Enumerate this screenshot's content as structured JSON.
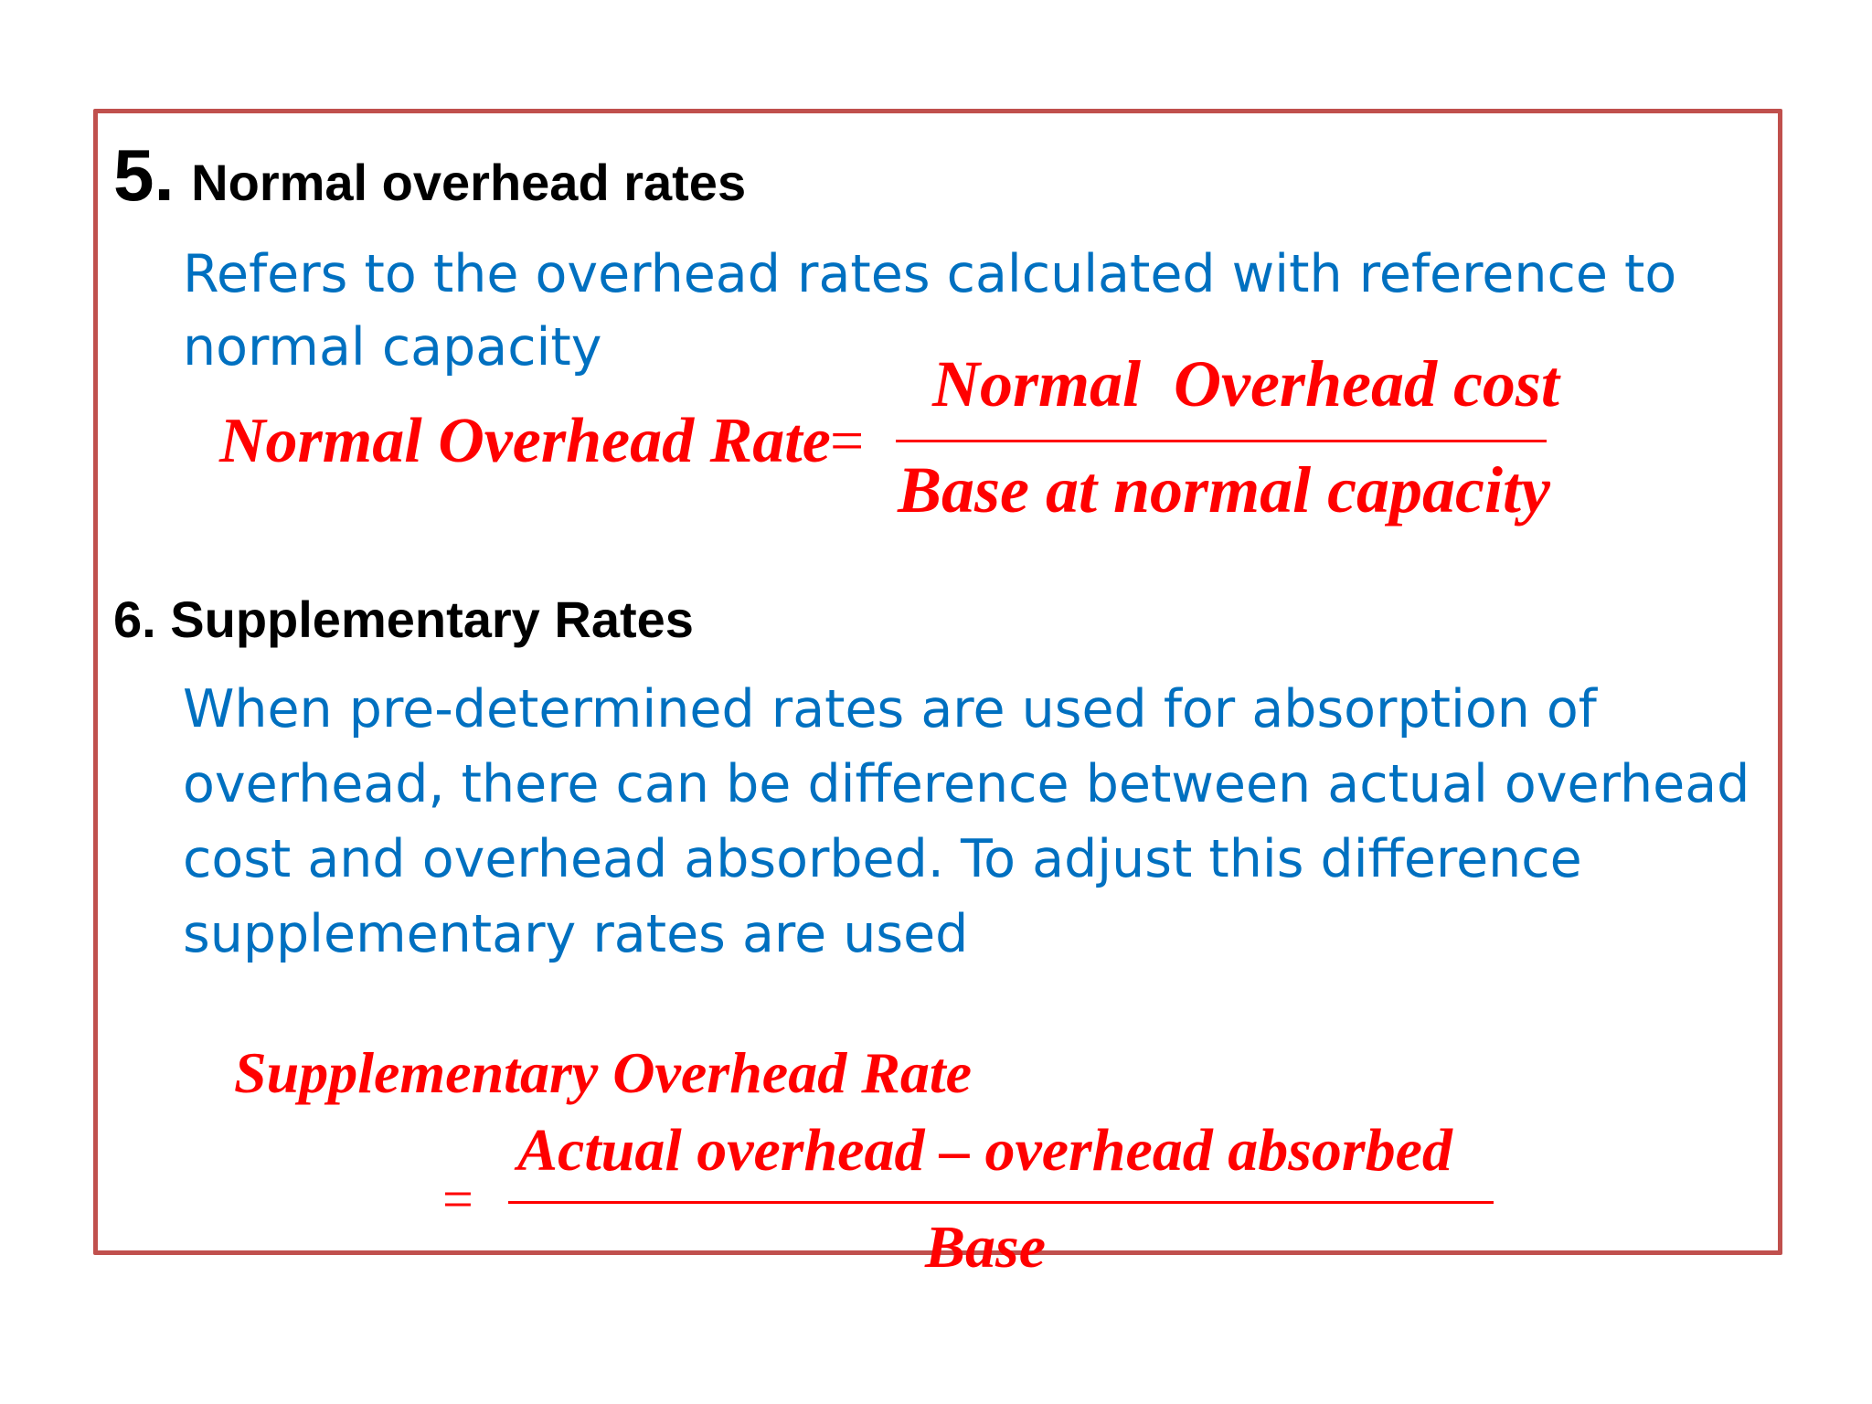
{
  "section5": {
    "number": "5.",
    "title": "Normal overhead rates",
    "description_line1": "Refers to the overhead rates calculated with reference to",
    "description_line2": "normal capacity",
    "formula": {
      "lhs": "Normal Overhead Rate",
      "equals": "=",
      "numerator": "Normal  Overhead cost",
      "denominator": "Base at normal capacity"
    }
  },
  "section6": {
    "title": "6. Supplementary Rates",
    "description_line1": "When pre-determined rates are used for absorption of",
    "description_line2": "overhead, there can be difference between actual overhead",
    "description_line3": "cost and overhead absorbed. To adjust this difference",
    "description_line4": "supplementary rates are used",
    "formula": {
      "lhs": "Supplementary Overhead Rate",
      "equals": "=",
      "numerator": "Actual overhead – overhead absorbed",
      "denominator": "Base"
    }
  },
  "colors": {
    "frame": "#c0504d",
    "heading": "#000000",
    "body": "#0070c0",
    "formula": "#ff0000"
  }
}
